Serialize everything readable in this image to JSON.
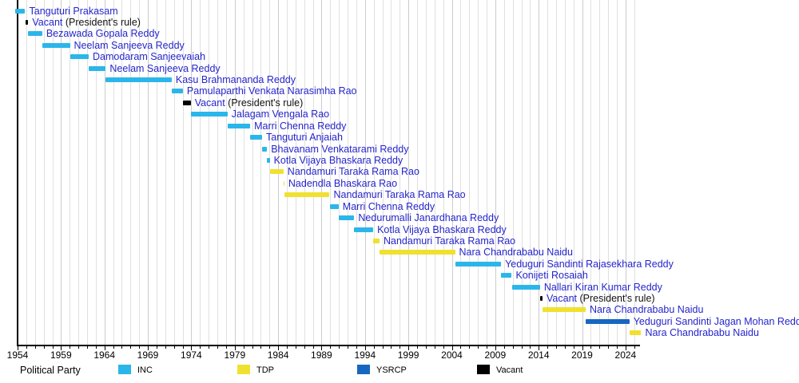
{
  "chart_data": {
    "type": "bar",
    "variant": "gantt-timeline",
    "title": "",
    "xlabel": "",
    "ylabel": "",
    "grid": "vertical, 1-year spacing",
    "legend_position": "bottom",
    "x_axis": {
      "major_tick_labels": [
        "1954",
        "1959",
        "1964",
        "1969",
        "1974",
        "1979",
        "1984",
        "1989",
        "1994",
        "1999",
        "2004",
        "2009",
        "2014",
        "2019",
        "2024"
      ],
      "major_tick_years": [
        1954,
        1959,
        1964,
        1969,
        1974,
        1979,
        1984,
        1989,
        1994,
        1999,
        2004,
        2009,
        2014,
        2019,
        2024
      ],
      "minor_tick_step_years": 1,
      "range_years": [
        1953.7,
        2025.8
      ]
    },
    "colors": {
      "INC": "#2BB6EA",
      "TDP": "#F0E130",
      "YSRCP": "#1767C0",
      "Vacant": "#000000",
      "label_text": "#2525CC",
      "suffix_text": "#111111",
      "gridline_minor": "#e0e0e0",
      "gridline_major": "#cccccc"
    },
    "legend": {
      "title": "Political Party",
      "entries": [
        {
          "label": "INC",
          "party": "INC"
        },
        {
          "label": "TDP",
          "party": "TDP"
        },
        {
          "label": "YSRCP",
          "party": "YSRCP"
        },
        {
          "label": "Vacant",
          "party": "Vacant"
        }
      ]
    },
    "bars": [
      {
        "label": "Tanguturi Prakasam",
        "suffix": "",
        "party": "INC",
        "start": 1953.75,
        "end": 1954.87
      },
      {
        "label": "Vacant",
        "suffix": " (President's rule)",
        "party": "Vacant",
        "start": 1954.87,
        "end": 1955.23
      },
      {
        "label": "Bezawada Gopala Reddy",
        "suffix": "",
        "party": "INC",
        "start": 1955.23,
        "end": 1956.84
      },
      {
        "label": "Neelam Sanjeeva Reddy",
        "suffix": "",
        "party": "INC",
        "start": 1956.84,
        "end": 1960.03
      },
      {
        "label": "Damodaram Sanjeevaiah",
        "suffix": "",
        "party": "INC",
        "start": 1960.03,
        "end": 1962.19
      },
      {
        "label": "Neelam Sanjeeva Reddy",
        "suffix": "",
        "party": "INC",
        "start": 1962.19,
        "end": 1964.16
      },
      {
        "label": "Kasu Brahmananda Reddy",
        "suffix": "",
        "party": "INC",
        "start": 1964.16,
        "end": 1971.75
      },
      {
        "label": "Pamulaparthi Venkata Narasimha Rao",
        "suffix": "",
        "party": "INC",
        "start": 1971.75,
        "end": 1973.03
      },
      {
        "label": "Vacant",
        "suffix": " (President's rule)",
        "party": "Vacant",
        "start": 1973.03,
        "end": 1973.94
      },
      {
        "label": "Jalagam Vengala Rao",
        "suffix": "",
        "party": "INC",
        "start": 1973.94,
        "end": 1978.18
      },
      {
        "label": "Marri Chenna Reddy",
        "suffix": "",
        "party": "INC",
        "start": 1978.18,
        "end": 1980.78
      },
      {
        "label": "Tanguturi Anjaiah",
        "suffix": "",
        "party": "INC",
        "start": 1980.78,
        "end": 1982.15
      },
      {
        "label": "Bhavanam Venkatarami Reddy",
        "suffix": "",
        "party": "INC",
        "start": 1982.15,
        "end": 1982.72
      },
      {
        "label": "Kotla Vijaya Bhaskara Reddy",
        "suffix": "",
        "party": "INC",
        "start": 1982.72,
        "end": 1983.03
      },
      {
        "label": "Nandamuri Taraka Rama Rao",
        "suffix": "",
        "party": "TDP",
        "start": 1983.03,
        "end": 1984.62
      },
      {
        "label": "Nadendla Bhaskara Rao",
        "suffix": "",
        "party": "TDP",
        "start": 1984.62,
        "end": 1984.72
      },
      {
        "label": "Nandamuri Taraka Rama Rao",
        "suffix": "",
        "party": "TDP",
        "start": 1984.72,
        "end": 1989.92
      },
      {
        "label": "Marri Chenna Reddy",
        "suffix": "",
        "party": "INC",
        "start": 1989.92,
        "end": 1990.96
      },
      {
        "label": "Nedurumalli Janardhana Reddy",
        "suffix": "",
        "party": "INC",
        "start": 1990.96,
        "end": 1992.77
      },
      {
        "label": "Kotla Vijaya Bhaskara Reddy",
        "suffix": "",
        "party": "INC",
        "start": 1992.77,
        "end": 1994.95
      },
      {
        "label": "Nandamuri Taraka Rama Rao",
        "suffix": "",
        "party": "TDP",
        "start": 1994.95,
        "end": 1995.67
      },
      {
        "label": "Nara Chandrababu Naidu",
        "suffix": "",
        "party": "TDP",
        "start": 1995.67,
        "end": 2004.37
      },
      {
        "label": "Yeduguri Sandinti Rajasekhara Reddy",
        "suffix": "",
        "party": "INC",
        "start": 2004.37,
        "end": 2009.67
      },
      {
        "label": "Konijeti Rosaiah",
        "suffix": "",
        "party": "INC",
        "start": 2009.67,
        "end": 2010.9
      },
      {
        "label": "Nallari Kiran Kumar Reddy",
        "suffix": "",
        "party": "INC",
        "start": 2010.9,
        "end": 2014.16
      },
      {
        "label": "Vacant",
        "suffix": " (President's rule)",
        "party": "Vacant",
        "start": 2014.16,
        "end": 2014.44
      },
      {
        "label": "Nara Chandrababu Naidu",
        "suffix": "",
        "party": "TDP",
        "start": 2014.44,
        "end": 2019.41
      },
      {
        "label": "Yeduguri Sandinti Jagan Mohan Reddy",
        "suffix": "",
        "party": "YSRCP",
        "start": 2019.41,
        "end": 2024.44
      },
      {
        "label": "Nara Chandrababu Naidu",
        "suffix": "",
        "party": "TDP",
        "start": 2024.45,
        "end": 2025.8
      }
    ]
  }
}
